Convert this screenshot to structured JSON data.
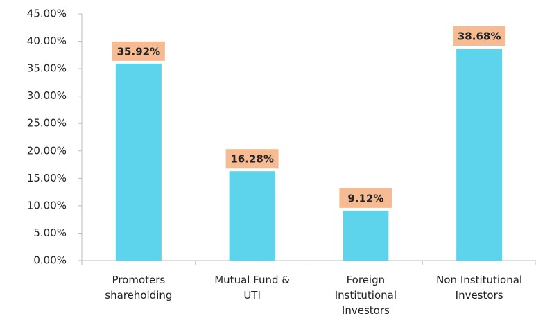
{
  "chart_data": {
    "type": "bar",
    "categories": [
      "Promoters\nshareholding",
      "Mutual Fund &\nUTI",
      "Foreign\nInstitutional\nInvestors",
      "Non Institutional\nInvestors"
    ],
    "values": [
      35.92,
      16.28,
      9.12,
      38.68
    ],
    "value_labels": [
      "35.92%",
      "16.28%",
      "9.12%",
      "38.68%"
    ],
    "color": "#5dd3ec",
    "label_color": "#f6bb93",
    "ylim": [
      0,
      45
    ],
    "yticks": [
      {
        "value": 0,
        "label": "0.00%"
      },
      {
        "value": 5,
        "label": "5.00%"
      },
      {
        "value": 10,
        "label": "10.00%"
      },
      {
        "value": 15,
        "label": "15.00%"
      },
      {
        "value": 20,
        "label": "20.00%"
      },
      {
        "value": 25,
        "label": "25.00%"
      },
      {
        "value": 30,
        "label": "30.00%"
      },
      {
        "value": 35,
        "label": "35.00%"
      },
      {
        "value": 40,
        "label": "40.00%"
      },
      {
        "value": 45,
        "label": "45.00%"
      }
    ],
    "grid": false
  }
}
